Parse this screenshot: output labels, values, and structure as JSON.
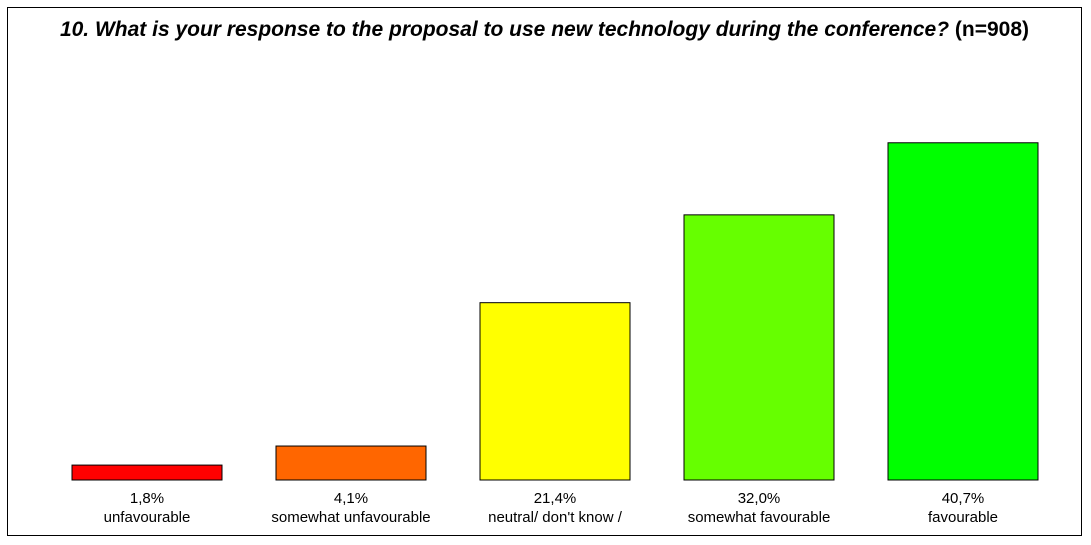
{
  "chart_data": {
    "type": "bar",
    "title": "10. What is your response to the proposal to use new technology during the conference?",
    "title_suffix": "(n=908)",
    "xlabel": "",
    "ylabel": "",
    "ylim": [
      0,
      42
    ],
    "grid": false,
    "legend": "none",
    "categories": [
      "unfavourable",
      "somewhat unfavourable",
      "neutral/ don't know /",
      "somewhat favourable",
      "favourable"
    ],
    "values": [
      1.8,
      4.1,
      21.4,
      32.0,
      40.7
    ],
    "value_labels": [
      "1,8%",
      "4,1%",
      "21,4%",
      "32,0%",
      "40,7%"
    ],
    "colors": [
      "#ff0000",
      "#ff6600",
      "#ffff00",
      "#66ff00",
      "#00ff00"
    ]
  }
}
